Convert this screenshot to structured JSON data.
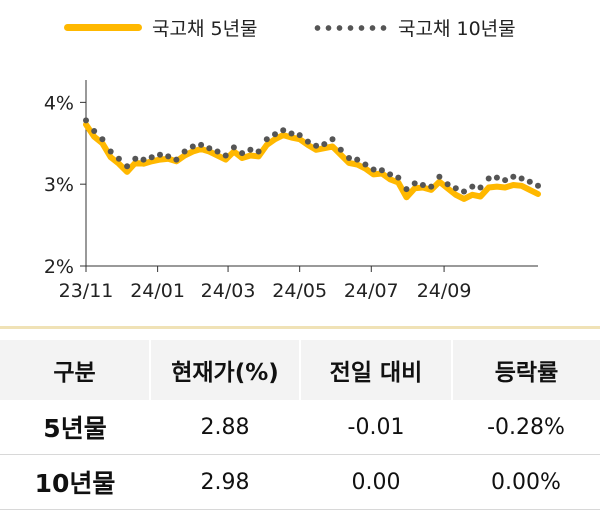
{
  "chart_data": {
    "type": "line",
    "title": "",
    "xlabel": "",
    "ylabel": "",
    "ylim": [
      2,
      4.2
    ],
    "y_ticks": [
      "2%",
      "3%",
      "4%"
    ],
    "y_tick_values": [
      2,
      3,
      4
    ],
    "x_ticks": [
      "23/11",
      "24/01",
      "24/03",
      "24/05",
      "24/07",
      "24/09"
    ],
    "x_tick_dates": [
      "2023-11-01",
      "2024-01-01",
      "2024-03-01",
      "2024-05-01",
      "2024-07-01",
      "2024-09-01"
    ],
    "x_start": "2023-11-01",
    "x_end": "2024-11-20",
    "grid": false,
    "legend_position": "top",
    "series": [
      {
        "name": "국고채 5년물",
        "style": "line",
        "color": "#FFB800",
        "x": [
          "2023-11-01",
          "2023-11-08",
          "2023-11-15",
          "2023-11-22",
          "2023-11-29",
          "2023-12-06",
          "2023-12-13",
          "2023-12-20",
          "2023-12-27",
          "2024-01-03",
          "2024-01-10",
          "2024-01-17",
          "2024-01-24",
          "2024-01-31",
          "2024-02-07",
          "2024-02-14",
          "2024-02-21",
          "2024-02-28",
          "2024-03-06",
          "2024-03-13",
          "2024-03-20",
          "2024-03-27",
          "2024-04-03",
          "2024-04-10",
          "2024-04-17",
          "2024-04-24",
          "2024-05-01",
          "2024-05-08",
          "2024-05-15",
          "2024-05-22",
          "2024-05-29",
          "2024-06-05",
          "2024-06-12",
          "2024-06-19",
          "2024-06-26",
          "2024-07-03",
          "2024-07-10",
          "2024-07-17",
          "2024-07-24",
          "2024-07-31",
          "2024-08-07",
          "2024-08-14",
          "2024-08-21",
          "2024-08-28",
          "2024-09-04",
          "2024-09-11",
          "2024-09-18",
          "2024-09-25",
          "2024-10-02",
          "2024-10-09",
          "2024-10-16",
          "2024-10-23",
          "2024-10-30",
          "2024-11-06",
          "2024-11-13",
          "2024-11-20"
        ],
        "values": [
          3.73,
          3.58,
          3.5,
          3.33,
          3.25,
          3.15,
          3.26,
          3.25,
          3.28,
          3.3,
          3.31,
          3.28,
          3.35,
          3.4,
          3.43,
          3.4,
          3.35,
          3.3,
          3.4,
          3.32,
          3.35,
          3.34,
          3.48,
          3.55,
          3.6,
          3.57,
          3.55,
          3.48,
          3.42,
          3.44,
          3.46,
          3.36,
          3.26,
          3.24,
          3.19,
          3.12,
          3.13,
          3.06,
          3.02,
          2.84,
          2.95,
          2.96,
          2.93,
          3.03,
          2.95,
          2.87,
          2.82,
          2.87,
          2.85,
          2.96,
          2.97,
          2.96,
          2.99,
          2.98,
          2.93,
          2.88
        ]
      },
      {
        "name": "국고채 10년물",
        "style": "dots",
        "color": "#555555",
        "x": [
          "2023-11-01",
          "2023-11-08",
          "2023-11-15",
          "2023-11-22",
          "2023-11-29",
          "2023-12-06",
          "2023-12-13",
          "2023-12-20",
          "2023-12-27",
          "2024-01-03",
          "2024-01-10",
          "2024-01-17",
          "2024-01-24",
          "2024-01-31",
          "2024-02-07",
          "2024-02-14",
          "2024-02-21",
          "2024-02-28",
          "2024-03-06",
          "2024-03-13",
          "2024-03-20",
          "2024-03-27",
          "2024-04-03",
          "2024-04-10",
          "2024-04-17",
          "2024-04-24",
          "2024-05-01",
          "2024-05-08",
          "2024-05-15",
          "2024-05-22",
          "2024-05-29",
          "2024-06-05",
          "2024-06-12",
          "2024-06-19",
          "2024-06-26",
          "2024-07-03",
          "2024-07-10",
          "2024-07-17",
          "2024-07-24",
          "2024-07-31",
          "2024-08-07",
          "2024-08-14",
          "2024-08-21",
          "2024-08-28",
          "2024-09-04",
          "2024-09-11",
          "2024-09-18",
          "2024-09-25",
          "2024-10-02",
          "2024-10-09",
          "2024-10-16",
          "2024-10-23",
          "2024-10-30",
          "2024-11-06",
          "2024-11-13",
          "2024-11-20"
        ],
        "values": [
          3.78,
          3.65,
          3.55,
          3.4,
          3.31,
          3.22,
          3.31,
          3.3,
          3.33,
          3.36,
          3.34,
          3.3,
          3.4,
          3.46,
          3.48,
          3.44,
          3.4,
          3.35,
          3.45,
          3.38,
          3.42,
          3.4,
          3.55,
          3.61,
          3.66,
          3.62,
          3.6,
          3.52,
          3.47,
          3.49,
          3.55,
          3.42,
          3.32,
          3.3,
          3.24,
          3.18,
          3.17,
          3.12,
          3.08,
          2.94,
          3.01,
          2.99,
          2.97,
          3.09,
          3.0,
          2.95,
          2.91,
          2.97,
          2.96,
          3.07,
          3.08,
          3.05,
          3.09,
          3.07,
          3.03,
          2.98
        ]
      }
    ]
  },
  "table": {
    "headers": [
      "구분",
      "현재가(%)",
      "전일 대비",
      "등락률"
    ],
    "rows": [
      {
        "label": "5년물",
        "current": "2.88",
        "change": "-0.01",
        "rate": "-0.28%"
      },
      {
        "label": "10년물",
        "current": "2.98",
        "change": "0.00",
        "rate": "0.00%"
      }
    ]
  }
}
